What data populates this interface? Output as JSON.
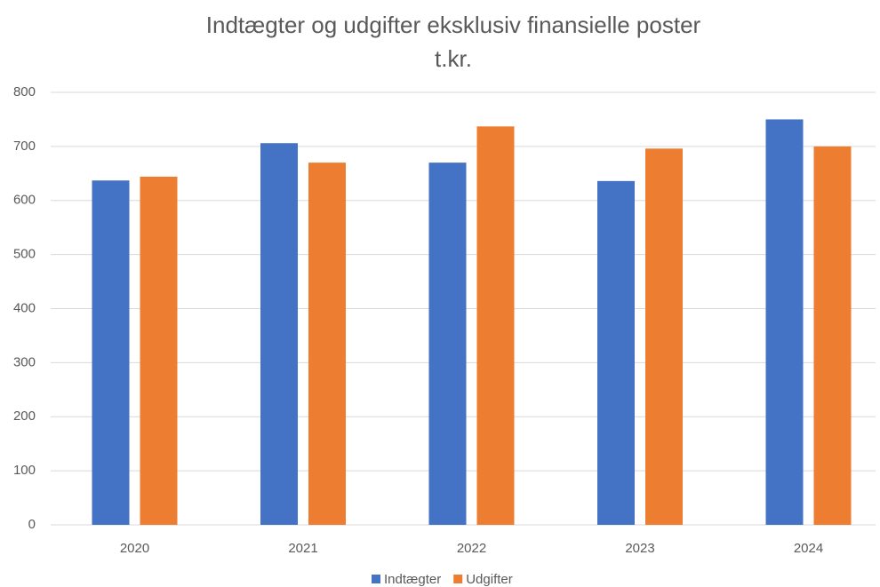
{
  "chart_data": {
    "type": "bar",
    "title": "Indtægter og udgifter eksklusiv finansielle poster",
    "subtitle": "t.kr.",
    "categories": [
      "2020",
      "2021",
      "2022",
      "2023",
      "2024"
    ],
    "series": [
      {
        "name": "Indtægter",
        "color": "#4472c4",
        "values": [
          637,
          706,
          670,
          636,
          750
        ]
      },
      {
        "name": "Udgifter",
        "color": "#ed7d31",
        "values": [
          644,
          670,
          737,
          696,
          700
        ]
      }
    ],
    "ylim": [
      0,
      800
    ],
    "yticks": [
      0,
      100,
      200,
      300,
      400,
      500,
      600,
      700,
      800
    ],
    "grid": true,
    "legend": "bottom"
  }
}
